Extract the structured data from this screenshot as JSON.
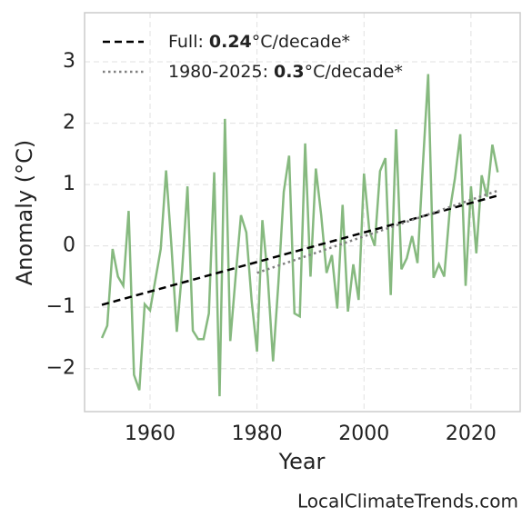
{
  "chart_data": {
    "type": "line",
    "x_label": "Year",
    "y_label": "Anomaly (°C)",
    "footer": "LocalClimateTrends.com",
    "xlim": [
      1947.76,
      2029.2
    ],
    "ylim": [
      -2.7,
      3.8
    ],
    "xticks": [
      1960,
      1980,
      2000,
      2020
    ],
    "yticks": [
      {
        "value": -2,
        "label": "−2"
      },
      {
        "value": -1,
        "label": "−1"
      },
      0,
      1,
      2,
      3
    ],
    "grid": true,
    "legend": "upper left",
    "x": [
      1951,
      1952,
      1953,
      1954,
      1955,
      1956,
      1957,
      1958,
      1959,
      1960,
      1961,
      1962,
      1963,
      1964,
      1965,
      1966,
      1967,
      1968,
      1969,
      1970,
      1971,
      1972,
      1973,
      1974,
      1975,
      1976,
      1977,
      1978,
      1979,
      1980,
      1981,
      1982,
      1983,
      1984,
      1985,
      1986,
      1987,
      1988,
      1989,
      1990,
      1991,
      1992,
      1993,
      1994,
      1995,
      1996,
      1997,
      1998,
      1999,
      2000,
      2001,
      2002,
      2003,
      2004,
      2005,
      2006,
      2007,
      2008,
      2009,
      2010,
      2011,
      2012,
      2013,
      2014,
      2015,
      2016,
      2017,
      2018,
      2019,
      2020,
      2021,
      2022,
      2023,
      2024,
      2025
    ],
    "color": "#86b97f",
    "values": [
      -1.5,
      -1.3,
      -0.05,
      -0.5,
      -0.65,
      0.57,
      -2.1,
      -2.35,
      -0.95,
      -1.05,
      -0.55,
      -0.05,
      1.23,
      0.0,
      -1.4,
      -0.4,
      0.97,
      -1.38,
      -1.52,
      -1.52,
      -1.1,
      1.2,
      -2.45,
      2.07,
      -1.55,
      -0.5,
      0.5,
      0.22,
      -0.9,
      -1.72,
      0.42,
      -0.5,
      -1.88,
      -0.6,
      0.88,
      1.47,
      -1.1,
      -1.15,
      1.67,
      -0.5,
      1.26,
      0.5,
      -0.44,
      -0.15,
      -1.02,
      0.67,
      -1.07,
      -0.3,
      -0.88,
      1.18,
      0.25,
      0.0,
      1.22,
      1.43,
      -0.8,
      1.9,
      -0.38,
      -0.2,
      0.16,
      -0.28,
      1.3,
      2.8,
      -0.52,
      -0.3,
      -0.5,
      0.55,
      1.1,
      1.82,
      -0.65,
      0.97,
      -0.12,
      1.15,
      0.8,
      1.65,
      1.2
    ],
    "series": [
      {
        "name": "Full:",
        "slope": 0.24,
        "slope_unit": "°C/decade*",
        "color": "#000000",
        "style": "dashed",
        "x": [
          1951,
          2025
        ],
        "values": [
          -0.96,
          0.82
        ]
      },
      {
        "name": "1980-2025:",
        "slope": 0.3,
        "slope_unit": "°C/decade*",
        "color": "#808080",
        "style": "dotted",
        "x": [
          1980,
          2025
        ],
        "values": [
          -0.44,
          0.9
        ]
      }
    ]
  }
}
